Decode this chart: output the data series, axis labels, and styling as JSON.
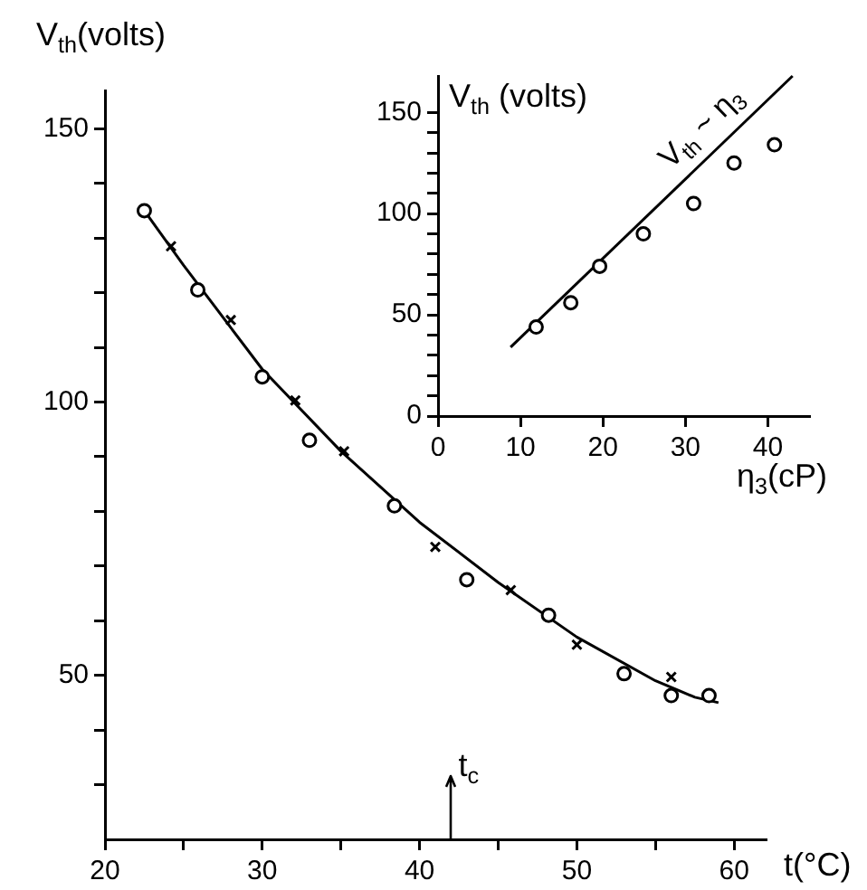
{
  "chart_data": [
    {
      "type": "scatter",
      "xlabel": "t(°C)",
      "ylabel": "V$_{th}$(volts)",
      "xlim": [
        20,
        62
      ],
      "ylim": [
        20,
        157
      ],
      "xticks": [
        20,
        {
          "value": 25,
          "label": null
        },
        30,
        {
          "value": 35,
          "label": null
        },
        40,
        {
          "value": 45,
          "label": null
        },
        50,
        {
          "value": 55,
          "label": null
        },
        60
      ],
      "yticks": [
        {
          "value": 30,
          "label": null
        },
        {
          "value": 40,
          "label": null
        },
        50,
        {
          "value": 60,
          "label": null
        },
        {
          "value": 70,
          "label": null
        },
        {
          "value": 80,
          "label": null
        },
        {
          "value": 90,
          "label": null
        },
        100,
        {
          "value": 110,
          "label": null
        },
        {
          "value": 120,
          "label": null
        },
        {
          "value": 130,
          "label": null
        },
        {
          "value": 140,
          "label": null
        },
        150
      ],
      "grid": false,
      "legend": false,
      "ref_lines": [
        {
          "axis": "x",
          "value": 42,
          "label": "t$_{c}$"
        }
      ],
      "series": [
        {
          "type": "scatter",
          "marker": "circle",
          "color": "#000000",
          "x": [
            22.5,
            25.9,
            30,
            33,
            38.4,
            43,
            48.2,
            53,
            56,
            58.4
          ],
          "values": [
            135,
            120.5,
            104.6,
            93,
            81,
            67.5,
            61,
            50.3,
            46.3,
            46.3
          ]
        },
        {
          "type": "scatter",
          "marker": "cross",
          "color": "#000000",
          "x": [
            24.2,
            28,
            32.1,
            35.2,
            41,
            45.8,
            50,
            56
          ],
          "values": [
            128.5,
            115,
            100.3,
            91,
            73.5,
            65.6,
            55.6,
            49.7
          ]
        },
        {
          "type": "line",
          "marker": "none",
          "color": "#000000",
          "x": [
            22.5,
            25,
            30,
            35,
            40,
            45,
            50,
            55,
            57.5,
            59
          ],
          "values": [
            135,
            125,
            106,
            91,
            78,
            67,
            57,
            49,
            46,
            45
          ]
        }
      ]
    },
    {
      "type": "scatter",
      "xlabel": "η$_{3}$(cP)",
      "ylabel": "V$_{th}$ (volts)",
      "xlim": [
        0,
        45
      ],
      "ylim": [
        0,
        168
      ],
      "xticks": [
        0,
        10,
        20,
        30,
        40
      ],
      "yticks": [
        0,
        {
          "value": 10,
          "label": null
        },
        {
          "value": 20,
          "label": null
        },
        {
          "value": 30,
          "label": null
        },
        {
          "value": 40,
          "label": null
        },
        50,
        {
          "value": 60,
          "label": null
        },
        {
          "value": 70,
          "label": null
        },
        {
          "value": 80,
          "label": null
        },
        {
          "value": 90,
          "label": null
        },
        100,
        {
          "value": 110,
          "label": null
        },
        {
          "value": 120,
          "label": null
        },
        {
          "value": 130,
          "label": null
        },
        {
          "value": 140,
          "label": null
        },
        150
      ],
      "grid": false,
      "legend": false,
      "annotations": [
        "V$_{th}$ ~ η$_{3}$"
      ],
      "series": [
        {
          "type": "scatter",
          "marker": "circle",
          "color": "#000000",
          "x": [
            11.9,
            16.1,
            19.6,
            24.9,
            31,
            35.9,
            40.8
          ],
          "values": [
            44,
            56,
            74,
            90,
            105,
            125,
            134
          ]
        },
        {
          "type": "line",
          "marker": "none",
          "color": "#000000",
          "x": [
            8.8,
            43
          ],
          "values": [
            34,
            168
          ]
        }
      ]
    }
  ]
}
